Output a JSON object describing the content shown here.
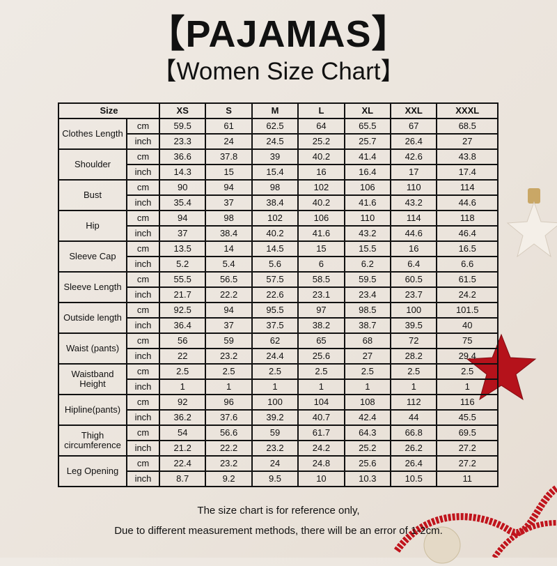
{
  "title": "【PAJAMAS】",
  "subtitle": "【Women Size Chart】",
  "table": {
    "size_header": "Size",
    "sizes": [
      "XS",
      "S",
      "M",
      "L",
      "XL",
      "XXL",
      "XXXL"
    ],
    "units": {
      "cm": "cm",
      "inch": "inch"
    },
    "rows": [
      {
        "label": "Clothes Length",
        "cm": [
          "59.5",
          "61",
          "62.5",
          "64",
          "65.5",
          "67",
          "68.5"
        ],
        "inch": [
          "23.3",
          "24",
          "24.5",
          "25.2",
          "25.7",
          "26.4",
          "27"
        ]
      },
      {
        "label": "Shoulder",
        "cm": [
          "36.6",
          "37.8",
          "39",
          "40.2",
          "41.4",
          "42.6",
          "43.8"
        ],
        "inch": [
          "14.3",
          "15",
          "15.4",
          "16",
          "16.4",
          "17",
          "17.4"
        ]
      },
      {
        "label": "Bust",
        "cm": [
          "90",
          "94",
          "98",
          "102",
          "106",
          "110",
          "114"
        ],
        "inch": [
          "35.4",
          "37",
          "38.4",
          "40.2",
          "41.6",
          "43.2",
          "44.6"
        ]
      },
      {
        "label": "Hip",
        "cm": [
          "94",
          "98",
          "102",
          "106",
          "110",
          "114",
          "118"
        ],
        "inch": [
          "37",
          "38.4",
          "40.2",
          "41.6",
          "43.2",
          "44.6",
          "46.4"
        ]
      },
      {
        "label": "Sleeve Cap",
        "cm": [
          "13.5",
          "14",
          "14.5",
          "15",
          "15.5",
          "16",
          "16.5"
        ],
        "inch": [
          "5.2",
          "5.4",
          "5.6",
          "6",
          "6.2",
          "6.4",
          "6.6"
        ]
      },
      {
        "label": "Sleeve Length",
        "cm": [
          "55.5",
          "56.5",
          "57.5",
          "58.5",
          "59.5",
          "60.5",
          "61.5"
        ],
        "inch": [
          "21.7",
          "22.2",
          "22.6",
          "23.1",
          "23.4",
          "23.7",
          "24.2"
        ]
      },
      {
        "label": "Outside length",
        "cm": [
          "92.5",
          "94",
          "95.5",
          "97",
          "98.5",
          "100",
          "101.5"
        ],
        "inch": [
          "36.4",
          "37",
          "37.5",
          "38.2",
          "38.7",
          "39.5",
          "40"
        ]
      },
      {
        "label": "Waist (pants)",
        "cm": [
          "56",
          "59",
          "62",
          "65",
          "68",
          "72",
          "75"
        ],
        "inch": [
          "22",
          "23.2",
          "24.4",
          "25.6",
          "27",
          "28.2",
          "29.4"
        ]
      },
      {
        "label": "Waistband Height",
        "cm": [
          "2.5",
          "2.5",
          "2.5",
          "2.5",
          "2.5",
          "2.5",
          "2.5"
        ],
        "inch": [
          "1",
          "1",
          "1",
          "1",
          "1",
          "1",
          "1"
        ]
      },
      {
        "label": "Hipline(pants)",
        "cm": [
          "92",
          "96",
          "100",
          "104",
          "108",
          "112",
          "116"
        ],
        "inch": [
          "36.2",
          "37.6",
          "39.2",
          "40.7",
          "42.4",
          "44",
          "45.5"
        ]
      },
      {
        "label": "Thigh circumference",
        "cm": [
          "54",
          "56.6",
          "59",
          "61.7",
          "64.3",
          "66.8",
          "69.5"
        ],
        "inch": [
          "21.2",
          "22.2",
          "23.2",
          "24.2",
          "25.2",
          "26.2",
          "27.2"
        ]
      },
      {
        "label": "Leg Opening",
        "cm": [
          "22.4",
          "23.2",
          "24",
          "24.8",
          "25.6",
          "26.4",
          "27.2"
        ],
        "inch": [
          "8.7",
          "9.2",
          "9.5",
          "10",
          "10.3",
          "10.5",
          "11"
        ]
      }
    ]
  },
  "footer": {
    "line1": "The size chart is for reference only,",
    "line2": "Due to different measurement methods, there will be an error of 1-2cm."
  },
  "colors": {
    "background": "#ece6df",
    "star_red": "#b5121b",
    "star_white": "#f4efe8",
    "ribbon": "#c0141c"
  }
}
